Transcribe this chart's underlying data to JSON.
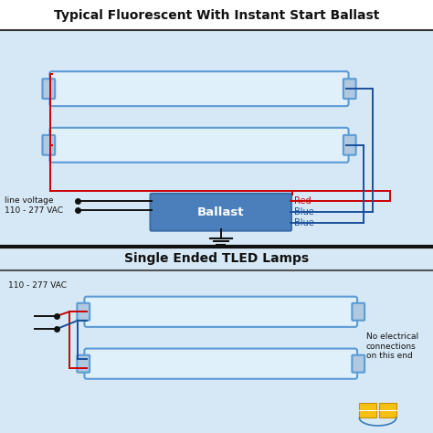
{
  "title_top": "Typical Fluorescent With Instant Start Ballast",
  "title_bottom": "Single Ended TLED Lamps",
  "bg_color": "#d6e8f5",
  "bg_white_top": "#cce0f0",
  "bulb_face": "#e0f0fa",
  "bulb_edge": "#5b9bd5",
  "ballast_face": "#4a7fbb",
  "ballast_edge": "#3a6ea8",
  "ballast_text": "Ballast",
  "ballast_text_color": "white",
  "red_wire": "#cc0000",
  "blue_wire": "#1a4f9c",
  "black_wire": "#111111",
  "label_line_voltage": "line voltage\n110 - 277 VAC",
  "label_line_voltage2": "110 - 277 VAC",
  "label_red": "Red",
  "label_blue1": "Blue",
  "label_blue2": "Blue",
  "label_no_elec": "No electrical\nconnections\non this end",
  "title_fontsize": 10.5,
  "label_fontsize": 7.5
}
